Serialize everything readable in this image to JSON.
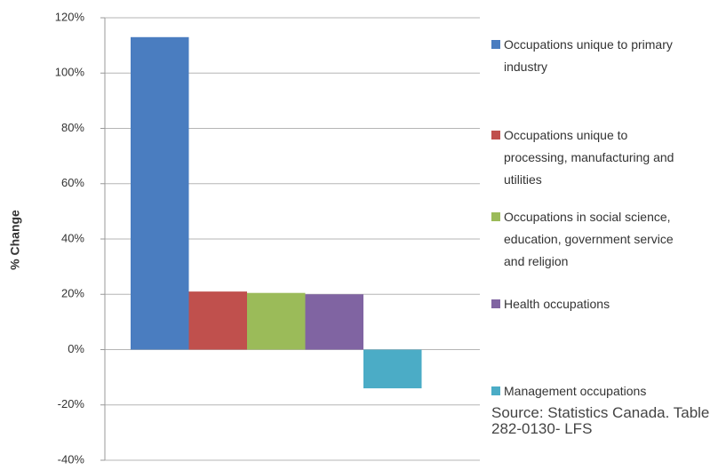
{
  "chart_data": {
    "type": "bar",
    "y_label": "% Change",
    "series": [
      {
        "name": "Occupations unique to primary industry",
        "color": "#4a7dc0",
        "values": [
          113
        ]
      },
      {
        "name": "Occupations unique to processing, manufacturing and utilities",
        "color": "#c0504d",
        "values": [
          21
        ]
      },
      {
        "name": "Occupations in social science, education, government service and religion",
        "color": "#9bbb59",
        "values": [
          20.5
        ]
      },
      {
        "name": "Health occupations",
        "color": "#8064a2",
        "values": [
          20
        ]
      },
      {
        "name": "Management occupations",
        "color": "#4bacc6",
        "values": [
          -14
        ]
      }
    ],
    "ylim": [
      -40,
      120
    ],
    "yticks": [
      {
        "value": -40,
        "label": "-40%"
      },
      {
        "value": -20,
        "label": "-20%"
      },
      {
        "value": 0,
        "label": "0%"
      },
      {
        "value": 20,
        "label": "20%"
      },
      {
        "value": 40,
        "label": "40%"
      },
      {
        "value": 60,
        "label": "60%"
      },
      {
        "value": 80,
        "label": "80%"
      },
      {
        "value": 100,
        "label": "100%"
      },
      {
        "value": 120,
        "label": "120%"
      }
    ],
    "grid": true,
    "legend": "right",
    "source": "Source: Statistics Canada. Table 282-0130- LFS"
  }
}
